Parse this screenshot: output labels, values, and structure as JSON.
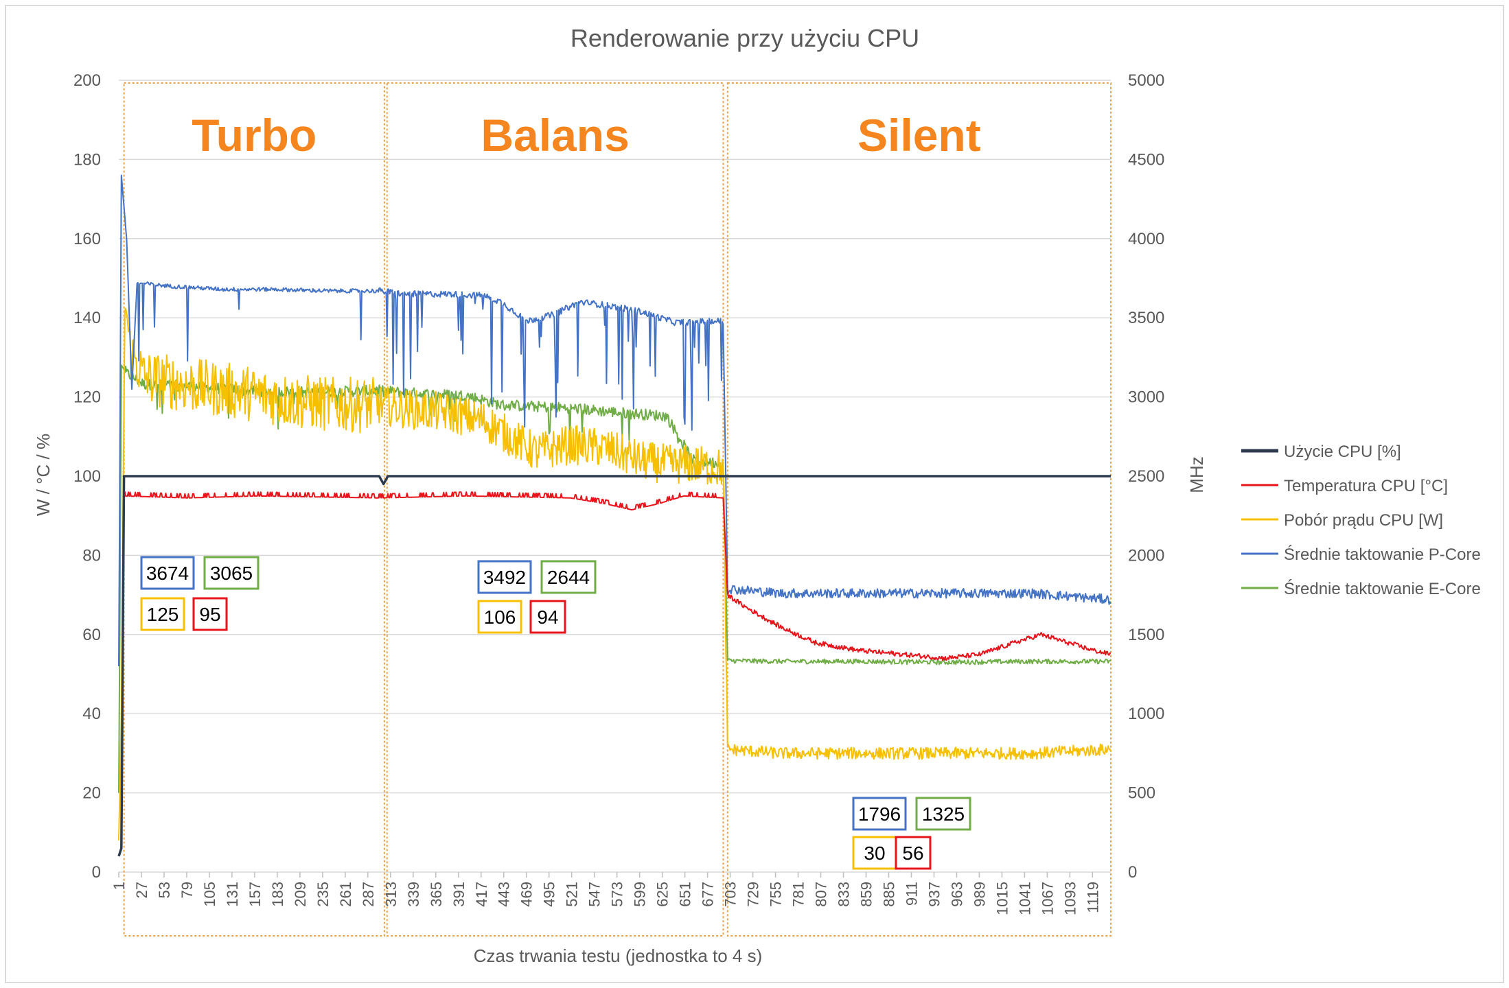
{
  "chart_data": {
    "type": "line",
    "title": "Renderowanie przy użyciu CPU",
    "xlabel": "Czas trwania testu (jednostka to 4 s)",
    "ylabel_left": "W / °C / %",
    "ylabel_right": "MHz",
    "ylim_left": [
      0,
      200
    ],
    "ylim_right": [
      0,
      5000
    ],
    "yticks_left": [
      "0",
      "20",
      "40",
      "60",
      "80",
      "100",
      "120",
      "140",
      "160",
      "180",
      "200"
    ],
    "yticks_right": [
      "0",
      "500",
      "1000",
      "1500",
      "2000",
      "2500",
      "3000",
      "3500",
      "4000",
      "4500",
      "5000"
    ],
    "xlim": [
      1,
      1140
    ],
    "xticks": [
      "1",
      "27",
      "53",
      "79",
      "105",
      "131",
      "157",
      "183",
      "209",
      "235",
      "261",
      "287",
      "313",
      "339",
      "365",
      "391",
      "417",
      "443",
      "469",
      "495",
      "521",
      "547",
      "573",
      "599",
      "625",
      "651",
      "677",
      "703",
      "729",
      "755",
      "781",
      "807",
      "833",
      "859",
      "885",
      "911",
      "937",
      "963",
      "989",
      "1015",
      "1041",
      "1067",
      "1093",
      "1119"
    ],
    "grid": true,
    "legend_position": "right",
    "colors": {
      "usage": "#2e3b4e",
      "temp": "#e8141b",
      "power": "#f6c000",
      "pcore": "#4472c4",
      "ecore": "#70ad47",
      "mode_label": "#f5861f",
      "region_border": "#e8a34a"
    },
    "series": [
      {
        "key": "usage",
        "name": "Użycie CPU [%]",
        "axis": "left",
        "points": [
          [
            1,
            4
          ],
          [
            4,
            6
          ],
          [
            7,
            100
          ],
          [
            300,
            100
          ],
          [
            305,
            98
          ],
          [
            310,
            100
          ],
          [
            1140,
            100
          ]
        ]
      },
      {
        "key": "temp",
        "name": "Temperatura CPU [°C]",
        "axis": "left",
        "points": [
          [
            7,
            95
          ],
          [
            80,
            94.5
          ],
          [
            160,
            95
          ],
          [
            300,
            94.5
          ],
          [
            400,
            95
          ],
          [
            520,
            94.5
          ],
          [
            560,
            93
          ],
          [
            590,
            91.5
          ],
          [
            620,
            93
          ],
          [
            650,
            95
          ],
          [
            695,
            94.5
          ],
          [
            700,
            70
          ],
          [
            720,
            67
          ],
          [
            760,
            62
          ],
          [
            800,
            58
          ],
          [
            850,
            56
          ],
          [
            900,
            55
          ],
          [
            950,
            54
          ],
          [
            990,
            55
          ],
          [
            1030,
            58
          ],
          [
            1060,
            60
          ],
          [
            1090,
            58
          ],
          [
            1120,
            56
          ],
          [
            1140,
            55
          ]
        ]
      },
      {
        "key": "power",
        "name": "Pobór prądu CPU [W]",
        "axis": "left",
        "points": [
          [
            1,
            8
          ],
          [
            4,
            40
          ],
          [
            8,
            145
          ],
          [
            14,
            132
          ],
          [
            30,
            125
          ],
          [
            80,
            123
          ],
          [
            150,
            121
          ],
          [
            200,
            119
          ],
          [
            250,
            118
          ],
          [
            300,
            118
          ],
          [
            330,
            117
          ],
          [
            380,
            116
          ],
          [
            420,
            114
          ],
          [
            450,
            110
          ],
          [
            480,
            106
          ],
          [
            520,
            108
          ],
          [
            560,
            107
          ],
          [
            600,
            104
          ],
          [
            630,
            103
          ],
          [
            660,
            103
          ],
          [
            695,
            102
          ],
          [
            700,
            31
          ],
          [
            760,
            30
          ],
          [
            850,
            30
          ],
          [
            950,
            30
          ],
          [
            1050,
            30
          ],
          [
            1140,
            31
          ]
        ]
      },
      {
        "key": "pcore",
        "name": "Średnie taktowanie P-Core",
        "axis": "right",
        "points": [
          [
            1,
            1300
          ],
          [
            4,
            4400
          ],
          [
            10,
            4000
          ],
          [
            16,
            3050
          ],
          [
            22,
            3720
          ],
          [
            60,
            3700
          ],
          [
            120,
            3680
          ],
          [
            180,
            3680
          ],
          [
            240,
            3670
          ],
          [
            300,
            3670
          ],
          [
            330,
            3650
          ],
          [
            380,
            3650
          ],
          [
            420,
            3640
          ],
          [
            440,
            3600
          ],
          [
            470,
            3480
          ],
          [
            500,
            3520
          ],
          [
            530,
            3600
          ],
          [
            560,
            3580
          ],
          [
            600,
            3540
          ],
          [
            640,
            3470
          ],
          [
            695,
            3480
          ],
          [
            700,
            1790
          ],
          [
            760,
            1760
          ],
          [
            850,
            1760
          ],
          [
            950,
            1760
          ],
          [
            1050,
            1760
          ],
          [
            1140,
            1720
          ]
        ]
      },
      {
        "key": "ecore",
        "name": "Średnie taktowanie E-Core",
        "axis": "right",
        "points": [
          [
            1,
            500
          ],
          [
            4,
            3200
          ],
          [
            10,
            3150
          ],
          [
            30,
            3080
          ],
          [
            80,
            3070
          ],
          [
            150,
            3040
          ],
          [
            220,
            3030
          ],
          [
            300,
            3040
          ],
          [
            350,
            3020
          ],
          [
            400,
            3010
          ],
          [
            440,
            2950
          ],
          [
            480,
            2940
          ],
          [
            520,
            2930
          ],
          [
            580,
            2900
          ],
          [
            630,
            2880
          ],
          [
            660,
            2600
          ],
          [
            695,
            2580
          ],
          [
            700,
            1335
          ],
          [
            760,
            1330
          ],
          [
            850,
            1330
          ],
          [
            950,
            1325
          ],
          [
            1050,
            1330
          ],
          [
            1140,
            1330
          ]
        ]
      }
    ],
    "regions": [
      {
        "label": "Turbo",
        "x_start": 7,
        "x_end": 306
      },
      {
        "label": "Balans",
        "x_start": 309,
        "x_end": 695
      },
      {
        "label": "Silent",
        "x_start": 700,
        "x_end": 1140
      }
    ],
    "annotations": [
      {
        "region": "Turbo",
        "pcore": "3674",
        "ecore": "3065",
        "power": "125",
        "temp": "95"
      },
      {
        "region": "Balans",
        "pcore": "3492",
        "ecore": "2644",
        "power": "106",
        "temp": "94"
      },
      {
        "region": "Silent",
        "pcore": "1796",
        "ecore": "1325",
        "power": "30",
        "temp": "56"
      }
    ]
  }
}
